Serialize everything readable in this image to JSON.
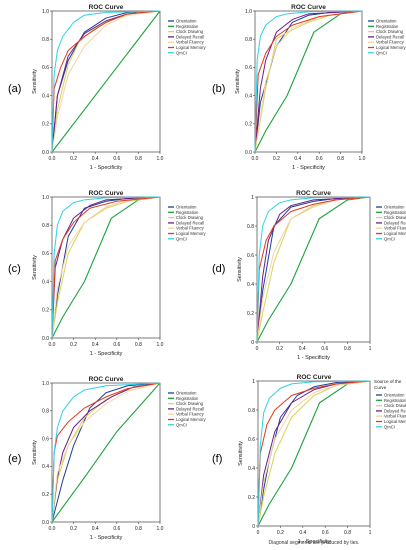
{
  "colors": {
    "Orientation": "#1f3e9a",
    "Registration": "#1aa33a",
    "Clock Drawing": "#d9d35a",
    "Delayed Recall": "#6a1e8a",
    "Verbal Fluency": "#f2d4a0",
    "Logical Memory": "#e23a1e",
    "QmCI": "#2fd0e6",
    "diagonal": "#1aa33a"
  },
  "common": {
    "title": "ROC Curve",
    "xlabel": "1 - Specificity",
    "ylabel": "Sensitivity",
    "ticks_a": [
      "0.0",
      "0.2",
      "0.4",
      "0.6",
      "0.8",
      "1.0"
    ],
    "ticks_d": [
      "0",
      "0.2",
      "0.4",
      "0.6",
      "0.8",
      "1"
    ]
  },
  "chart_data": [
    {
      "id": "a",
      "panel_label": "(a)",
      "type": "line",
      "title": "ROC Curve",
      "xlabel": "1 - Specificity",
      "ylabel": "Sensitivity",
      "xlim": [
        0,
        1
      ],
      "ylim": [
        0,
        1
      ],
      "legend": "right",
      "tick_style": "a",
      "series": [
        {
          "name": "Orientation",
          "x": [
            0,
            0.05,
            0.15,
            0.3,
            0.5,
            0.7,
            1
          ],
          "y": [
            0,
            0.4,
            0.65,
            0.85,
            0.95,
            0.99,
            1
          ]
        },
        {
          "name": "Registration",
          "x": [
            0,
            1
          ],
          "y": [
            0,
            1
          ]
        },
        {
          "name": "Clock Drawing",
          "x": [
            0,
            0.05,
            0.15,
            0.25,
            0.4,
            0.6,
            0.8,
            1
          ],
          "y": [
            0,
            0.3,
            0.62,
            0.78,
            0.88,
            0.95,
            0.99,
            1
          ]
        },
        {
          "name": "Delayed Recall",
          "x": [
            0,
            0.05,
            0.15,
            0.3,
            0.5,
            0.7,
            1
          ],
          "y": [
            0,
            0.4,
            0.68,
            0.84,
            0.93,
            0.98,
            1
          ]
        },
        {
          "name": "Verbal Fluency",
          "x": [
            0,
            0.05,
            0.15,
            0.3,
            0.5,
            0.7,
            1
          ],
          "y": [
            0,
            0.25,
            0.55,
            0.75,
            0.9,
            0.97,
            1
          ]
        },
        {
          "name": "Logical Memory",
          "x": [
            0,
            0.02,
            0.08,
            0.15,
            0.3,
            0.5,
            0.7,
            1
          ],
          "y": [
            0,
            0.45,
            0.6,
            0.72,
            0.82,
            0.92,
            0.98,
            1
          ]
        },
        {
          "name": "QmCI",
          "x": [
            0,
            0.02,
            0.05,
            0.1,
            0.2,
            0.3,
            0.5,
            1
          ],
          "y": [
            0,
            0.55,
            0.72,
            0.82,
            0.92,
            0.97,
            0.99,
            1
          ]
        }
      ]
    },
    {
      "id": "b",
      "panel_label": "(b)",
      "type": "line",
      "title": "ROC Curve",
      "xlabel": "1 - Specificity",
      "ylabel": "Sensitivity",
      "xlim": [
        0,
        1
      ],
      "ylim": [
        0,
        1
      ],
      "legend": "right",
      "tick_style": "a",
      "series": [
        {
          "name": "Orientation",
          "x": [
            0,
            0.05,
            0.2,
            0.35,
            0.5,
            0.7,
            1
          ],
          "y": [
            0,
            0.35,
            0.75,
            0.92,
            0.97,
            0.99,
            1
          ]
        },
        {
          "name": "Registration",
          "x": [
            0,
            0.1,
            0.3,
            0.55,
            0.8,
            1
          ],
          "y": [
            0,
            0.15,
            0.4,
            0.85,
            0.98,
            1
          ]
        },
        {
          "name": "Clock Drawing",
          "x": [
            0,
            0.1,
            0.2,
            0.3,
            0.5,
            0.7,
            1
          ],
          "y": [
            0,
            0.45,
            0.8,
            0.85,
            0.92,
            0.97,
            1
          ]
        },
        {
          "name": "Delayed Recall",
          "x": [
            0,
            0.05,
            0.1,
            0.2,
            0.35,
            0.5,
            1
          ],
          "y": [
            0,
            0.45,
            0.65,
            0.85,
            0.94,
            0.98,
            1
          ]
        },
        {
          "name": "Verbal Fluency",
          "x": [
            0,
            0.1,
            0.2,
            0.35,
            0.6,
            1
          ],
          "y": [
            0,
            0.5,
            0.75,
            0.88,
            0.96,
            1
          ]
        },
        {
          "name": "Logical Memory",
          "x": [
            0,
            0.03,
            0.1,
            0.2,
            0.35,
            0.6,
            1
          ],
          "y": [
            0,
            0.55,
            0.7,
            0.82,
            0.9,
            0.96,
            1
          ]
        },
        {
          "name": "QmCI",
          "x": [
            0,
            0.02,
            0.05,
            0.1,
            0.2,
            0.3,
            0.5,
            1
          ],
          "y": [
            0,
            0.65,
            0.82,
            0.9,
            0.96,
            0.98,
            0.995,
            1
          ]
        }
      ]
    },
    {
      "id": "c",
      "panel_label": "(c)",
      "type": "line",
      "title": "ROC Curve",
      "xlabel": "1 - Specificity",
      "ylabel": "Sensitivity",
      "xlim": [
        0,
        1
      ],
      "ylim": [
        0,
        1
      ],
      "legend": "right",
      "tick_style": "a",
      "series": [
        {
          "name": "Orientation",
          "x": [
            0,
            0.05,
            0.15,
            0.3,
            0.5,
            0.7,
            1
          ],
          "y": [
            0,
            0.3,
            0.72,
            0.92,
            0.97,
            0.99,
            1
          ]
        },
        {
          "name": "Registration",
          "x": [
            0,
            0.1,
            0.3,
            0.55,
            0.8,
            1
          ],
          "y": [
            0,
            0.15,
            0.4,
            0.85,
            0.98,
            1
          ]
        },
        {
          "name": "Clock Drawing",
          "x": [
            0,
            0.05,
            0.15,
            0.3,
            0.5,
            0.7,
            1
          ],
          "y": [
            0,
            0.25,
            0.6,
            0.82,
            0.92,
            0.97,
            1
          ]
        },
        {
          "name": "Delayed Recall",
          "x": [
            0,
            0.03,
            0.1,
            0.2,
            0.35,
            0.5,
            1
          ],
          "y": [
            0,
            0.5,
            0.7,
            0.85,
            0.94,
            0.98,
            1
          ]
        },
        {
          "name": "Verbal Fluency",
          "x": [
            0,
            0.05,
            0.15,
            0.3,
            0.5,
            0.7,
            1
          ],
          "y": [
            0,
            0.35,
            0.65,
            0.82,
            0.93,
            0.98,
            1
          ]
        },
        {
          "name": "Logical Memory",
          "x": [
            0,
            0.03,
            0.1,
            0.2,
            0.35,
            0.6,
            1
          ],
          "y": [
            0,
            0.55,
            0.7,
            0.82,
            0.92,
            0.97,
            1
          ]
        },
        {
          "name": "QmCI",
          "x": [
            0,
            0.02,
            0.05,
            0.1,
            0.2,
            0.3,
            0.5,
            1
          ],
          "y": [
            0,
            0.6,
            0.8,
            0.9,
            0.96,
            0.98,
            0.995,
            1
          ]
        }
      ]
    },
    {
      "id": "d",
      "panel_label": "(d)",
      "type": "line",
      "title": "ROC Curve",
      "xlabel": "1 - Specificity",
      "ylabel": "Sensitivity",
      "xlim": [
        0,
        1
      ],
      "ylim": [
        0,
        1
      ],
      "legend": "right",
      "tick_style": "d",
      "series": [
        {
          "name": "Orientation",
          "x": [
            0,
            0.05,
            0.15,
            0.3,
            0.5,
            0.7,
            1
          ],
          "y": [
            0,
            0.35,
            0.8,
            0.93,
            0.97,
            0.99,
            1
          ]
        },
        {
          "name": "Registration",
          "x": [
            0,
            0.1,
            0.3,
            0.55,
            0.8,
            1
          ],
          "y": [
            0,
            0.15,
            0.4,
            0.85,
            0.98,
            1
          ]
        },
        {
          "name": "Clock Drawing",
          "x": [
            0,
            0.05,
            0.15,
            0.3,
            0.5,
            0.7,
            1
          ],
          "y": [
            0,
            0.2,
            0.55,
            0.85,
            0.94,
            0.98,
            1
          ]
        },
        {
          "name": "Delayed Recall",
          "x": [
            0,
            0.05,
            0.1,
            0.2,
            0.3,
            0.5,
            1
          ],
          "y": [
            0,
            0.45,
            0.7,
            0.88,
            0.94,
            0.98,
            1
          ]
        },
        {
          "name": "Verbal Fluency",
          "x": [
            0,
            0.05,
            0.15,
            0.3,
            0.5,
            0.7,
            1
          ],
          "y": [
            0,
            0.3,
            0.62,
            0.85,
            0.93,
            0.98,
            1
          ]
        },
        {
          "name": "Logical Memory",
          "x": [
            0,
            0.02,
            0.08,
            0.15,
            0.3,
            0.5,
            0.7,
            1
          ],
          "y": [
            0,
            0.5,
            0.7,
            0.8,
            0.9,
            0.95,
            0.98,
            1
          ]
        },
        {
          "name": "QmCI",
          "x": [
            0,
            0.02,
            0.05,
            0.1,
            0.2,
            0.3,
            0.5,
            1
          ],
          "y": [
            0,
            0.6,
            0.8,
            0.9,
            0.96,
            0.98,
            0.995,
            1
          ]
        }
      ]
    },
    {
      "id": "e",
      "panel_label": "(e)",
      "type": "line",
      "title": "ROC Curve",
      "xlabel": "1 - Specificity",
      "ylabel": "Sensitivity",
      "xlim": [
        0,
        1
      ],
      "ylim": [
        0,
        1
      ],
      "legend": "right",
      "tick_style": "a",
      "series": [
        {
          "name": "Orientation",
          "x": [
            0,
            0.1,
            0.2,
            0.35,
            0.5,
            0.7,
            1
          ],
          "y": [
            0,
            0.3,
            0.55,
            0.82,
            0.93,
            0.98,
            1
          ]
        },
        {
          "name": "Registration",
          "x": [
            0,
            0.3,
            0.6,
            1
          ],
          "y": [
            0,
            0.32,
            0.65,
            1
          ]
        },
        {
          "name": "Clock Drawing",
          "x": [
            0,
            0.05,
            0.15,
            0.3,
            0.5,
            0.7,
            1
          ],
          "y": [
            0,
            0.3,
            0.55,
            0.75,
            0.88,
            0.96,
            1
          ]
        },
        {
          "name": "Delayed Recall",
          "x": [
            0,
            0.05,
            0.1,
            0.2,
            0.35,
            0.55,
            0.75,
            1
          ],
          "y": [
            0,
            0.32,
            0.5,
            0.68,
            0.8,
            0.9,
            0.97,
            1
          ]
        },
        {
          "name": "Verbal Fluency",
          "x": [
            0,
            0.05,
            0.15,
            0.3,
            0.5,
            0.7,
            1
          ],
          "y": [
            0,
            0.35,
            0.55,
            0.72,
            0.85,
            0.94,
            1
          ]
        },
        {
          "name": "Logical Memory",
          "x": [
            0,
            0.02,
            0.05,
            0.15,
            0.3,
            0.5,
            0.7,
            1
          ],
          "y": [
            0,
            0.5,
            0.62,
            0.72,
            0.82,
            0.9,
            0.96,
            1
          ]
        },
        {
          "name": "QmCI",
          "x": [
            0,
            0.02,
            0.05,
            0.1,
            0.2,
            0.3,
            0.5,
            1
          ],
          "y": [
            0,
            0.5,
            0.68,
            0.8,
            0.9,
            0.95,
            0.98,
            1
          ]
        }
      ]
    },
    {
      "id": "f",
      "panel_label": "(f)",
      "type": "line",
      "title": "ROC Curve",
      "xlabel": "1 - Specificity",
      "ylabel": "Sensitivity",
      "xlim": [
        0,
        1
      ],
      "ylim": [
        0,
        1
      ],
      "legend": "right",
      "tick_style": "d",
      "legend_title": "Source of the Curve",
      "footnote": "Diagonal segments are produced by ties.",
      "series": [
        {
          "name": "Orientation",
          "x": [
            0,
            0.05,
            0.1,
            0.2,
            0.35,
            0.5,
            0.7,
            1
          ],
          "y": [
            0,
            0.25,
            0.45,
            0.75,
            0.9,
            0.96,
            0.99,
            1
          ]
        },
        {
          "name": "Registration",
          "x": [
            0,
            0.1,
            0.3,
            0.55,
            0.8,
            1
          ],
          "y": [
            0,
            0.15,
            0.4,
            0.85,
            0.98,
            1
          ]
        },
        {
          "name": "Clock Drawing",
          "x": [
            0,
            0.05,
            0.15,
            0.3,
            0.5,
            0.7,
            1
          ],
          "y": [
            0,
            0.2,
            0.5,
            0.75,
            0.9,
            0.97,
            1
          ]
        },
        {
          "name": "Delayed Recall",
          "x": [
            0,
            0.05,
            0.15,
            0.3,
            0.5,
            0.7,
            1
          ],
          "y": [
            0,
            0.35,
            0.65,
            0.85,
            0.94,
            0.98,
            1
          ]
        },
        {
          "name": "Verbal Fluency",
          "x": [
            0,
            0.05,
            0.15,
            0.3,
            0.5,
            0.7,
            1
          ],
          "y": [
            0,
            0.3,
            0.6,
            0.8,
            0.92,
            0.97,
            1
          ]
        },
        {
          "name": "Logical Memory",
          "x": [
            0,
            0.02,
            0.08,
            0.15,
            0.3,
            0.5,
            0.7,
            1
          ],
          "y": [
            0,
            0.5,
            0.7,
            0.8,
            0.9,
            0.95,
            0.98,
            1
          ]
        },
        {
          "name": "QmCI",
          "x": [
            0,
            0.02,
            0.05,
            0.1,
            0.2,
            0.3,
            0.5,
            1
          ],
          "y": [
            0,
            0.55,
            0.78,
            0.88,
            0.95,
            0.98,
            0.995,
            1
          ]
        }
      ]
    }
  ]
}
